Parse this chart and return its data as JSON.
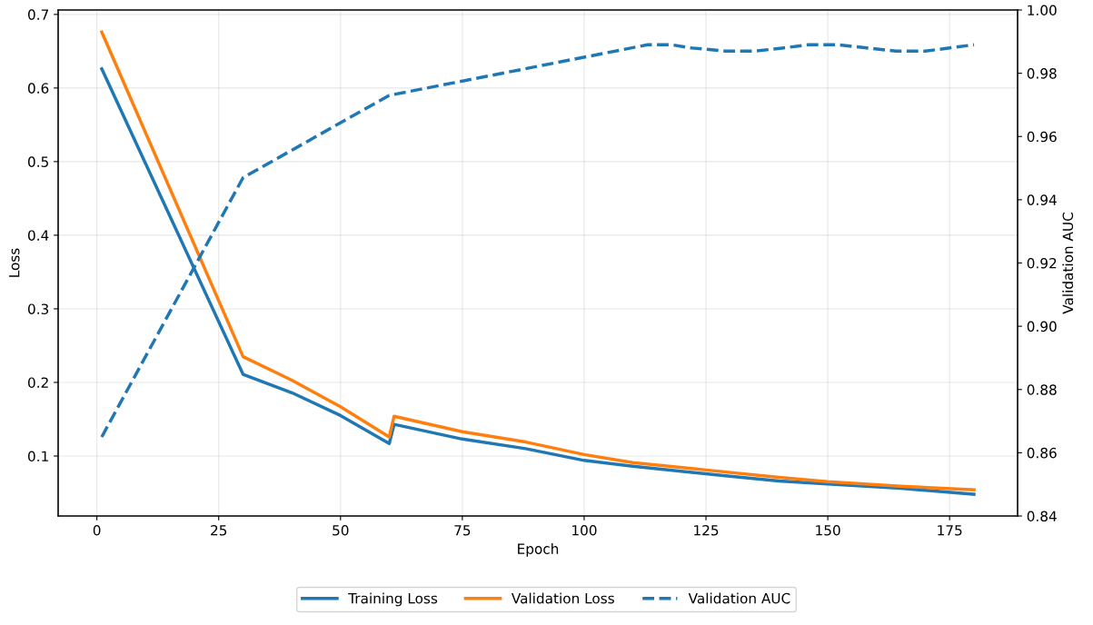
{
  "chart_data": {
    "type": "line",
    "xlabel": "Epoch",
    "ylabel": "Loss",
    "y2label": "Validation AUC",
    "xlim": [
      -7.95,
      188.95
    ],
    "xticks": [
      0,
      25,
      50,
      75,
      100,
      125,
      150,
      175
    ],
    "ylim": [
      0.0185,
      0.706
    ],
    "yticks": [
      0.1,
      0.2,
      0.3,
      0.4,
      0.5,
      0.6,
      0.7
    ],
    "y2lim": [
      0.84,
      1.0
    ],
    "y2ticks": [
      {
        "value": 0.84,
        "label": "0.84"
      },
      {
        "value": 0.86,
        "label": "0.86"
      },
      {
        "value": 0.88,
        "label": "0.88"
      },
      {
        "value": 0.9,
        "label": "0.90"
      },
      {
        "value": 0.92,
        "label": "0.92"
      },
      {
        "value": 0.94,
        "label": "0.94"
      },
      {
        "value": 0.96,
        "label": "0.96"
      },
      {
        "value": 0.98,
        "label": "0.98"
      },
      {
        "value": 1.0,
        "label": "1.00"
      }
    ],
    "grid": true,
    "legend": "bottom",
    "series": [
      {
        "name": "Training Loss",
        "color": "#1f77b4",
        "line_style": "solid",
        "x": [
          1,
          30,
          40,
          50,
          60,
          61,
          75,
          88,
          100,
          110,
          129,
          140,
          150,
          165,
          180
        ],
        "values": [
          0.626,
          0.211,
          0.186,
          0.155,
          0.117,
          0.143,
          0.123,
          0.11,
          0.094,
          0.086,
          0.073,
          0.066,
          0.062,
          0.056,
          0.048
        ]
      },
      {
        "name": "Validation Loss",
        "color": "#ff7f0e",
        "line_style": "solid",
        "x": [
          1,
          30,
          40,
          50,
          60,
          61,
          75,
          88,
          100,
          110,
          125,
          140,
          150,
          165,
          180
        ],
        "values": [
          0.676,
          0.235,
          0.203,
          0.167,
          0.126,
          0.154,
          0.133,
          0.119,
          0.102,
          0.091,
          0.081,
          0.071,
          0.065,
          0.059,
          0.054
        ]
      },
      {
        "name": "Validation AUC",
        "color": "#1f77b4",
        "line_style": "dashed",
        "axis": "y2",
        "x": [
          1,
          30,
          60,
          113,
          118,
          122,
          129,
          135,
          141,
          146,
          152,
          158,
          164,
          170,
          175,
          180
        ],
        "values": [
          0.865,
          0.947,
          0.973,
          0.989,
          0.989,
          0.988,
          0.987,
          0.987,
          0.988,
          0.989,
          0.989,
          0.988,
          0.987,
          0.987,
          0.988,
          0.989
        ]
      }
    ]
  }
}
